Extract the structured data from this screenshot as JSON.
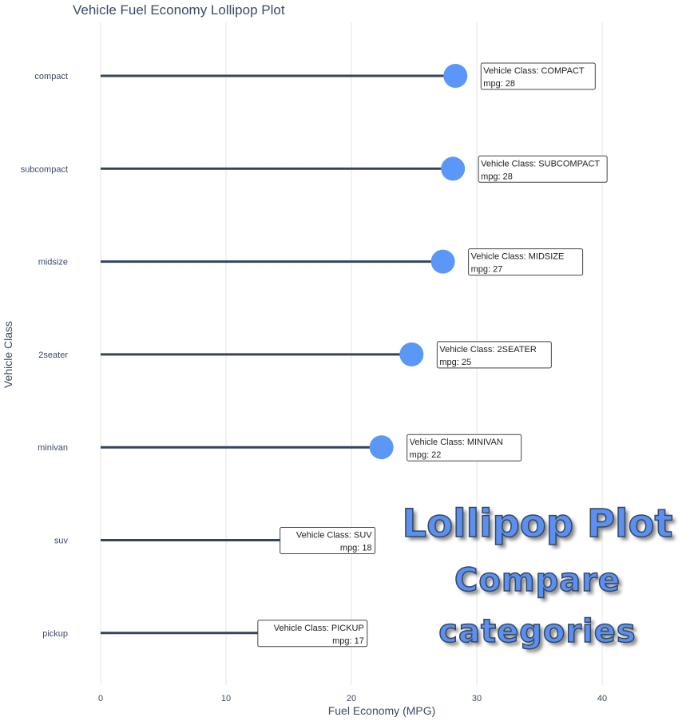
{
  "chart_data": {
    "type": "lollipop",
    "title": "Vehicle Fuel Economy Lollipop Plot",
    "xlabel": "Fuel Economy (MPG)",
    "ylabel": "Vehicle Class",
    "xlim": [
      0,
      47
    ],
    "x_ticks": [
      0,
      10,
      20,
      30,
      40
    ],
    "grid": "vertical",
    "categories": [
      "compact",
      "subcompact",
      "midsize",
      "2seater",
      "minivan",
      "suv",
      "pickup"
    ],
    "values": [
      28.3,
      28.1,
      27.3,
      24.8,
      22.4,
      18.1,
      16.9
    ],
    "tooltips": [
      {
        "line1": "Vehicle Class: COMPACT",
        "line2": "mpg: 28"
      },
      {
        "line1": "Vehicle Class: SUBCOMPACT",
        "line2": "mpg: 28"
      },
      {
        "line1": "Vehicle Class: MIDSIZE",
        "line2": "mpg: 27"
      },
      {
        "line1": "Vehicle Class: 2SEATER",
        "line2": "mpg: 25"
      },
      {
        "line1": "Vehicle Class: MINIVAN",
        "line2": "mpg: 22"
      },
      {
        "line1": "Vehicle Class: SUV",
        "line2": "mpg: 18"
      },
      {
        "line1": "Vehicle Class: PICKUP",
        "line2": "mpg: 17"
      }
    ],
    "colors": {
      "stem": "#34445e",
      "dot": "#5b97f7",
      "grid": "#e6e6e6",
      "text": "#3a4a66"
    }
  },
  "watermark": {
    "line1": "Lollipop Plot",
    "line2": "Compare",
    "line3": "categories"
  }
}
